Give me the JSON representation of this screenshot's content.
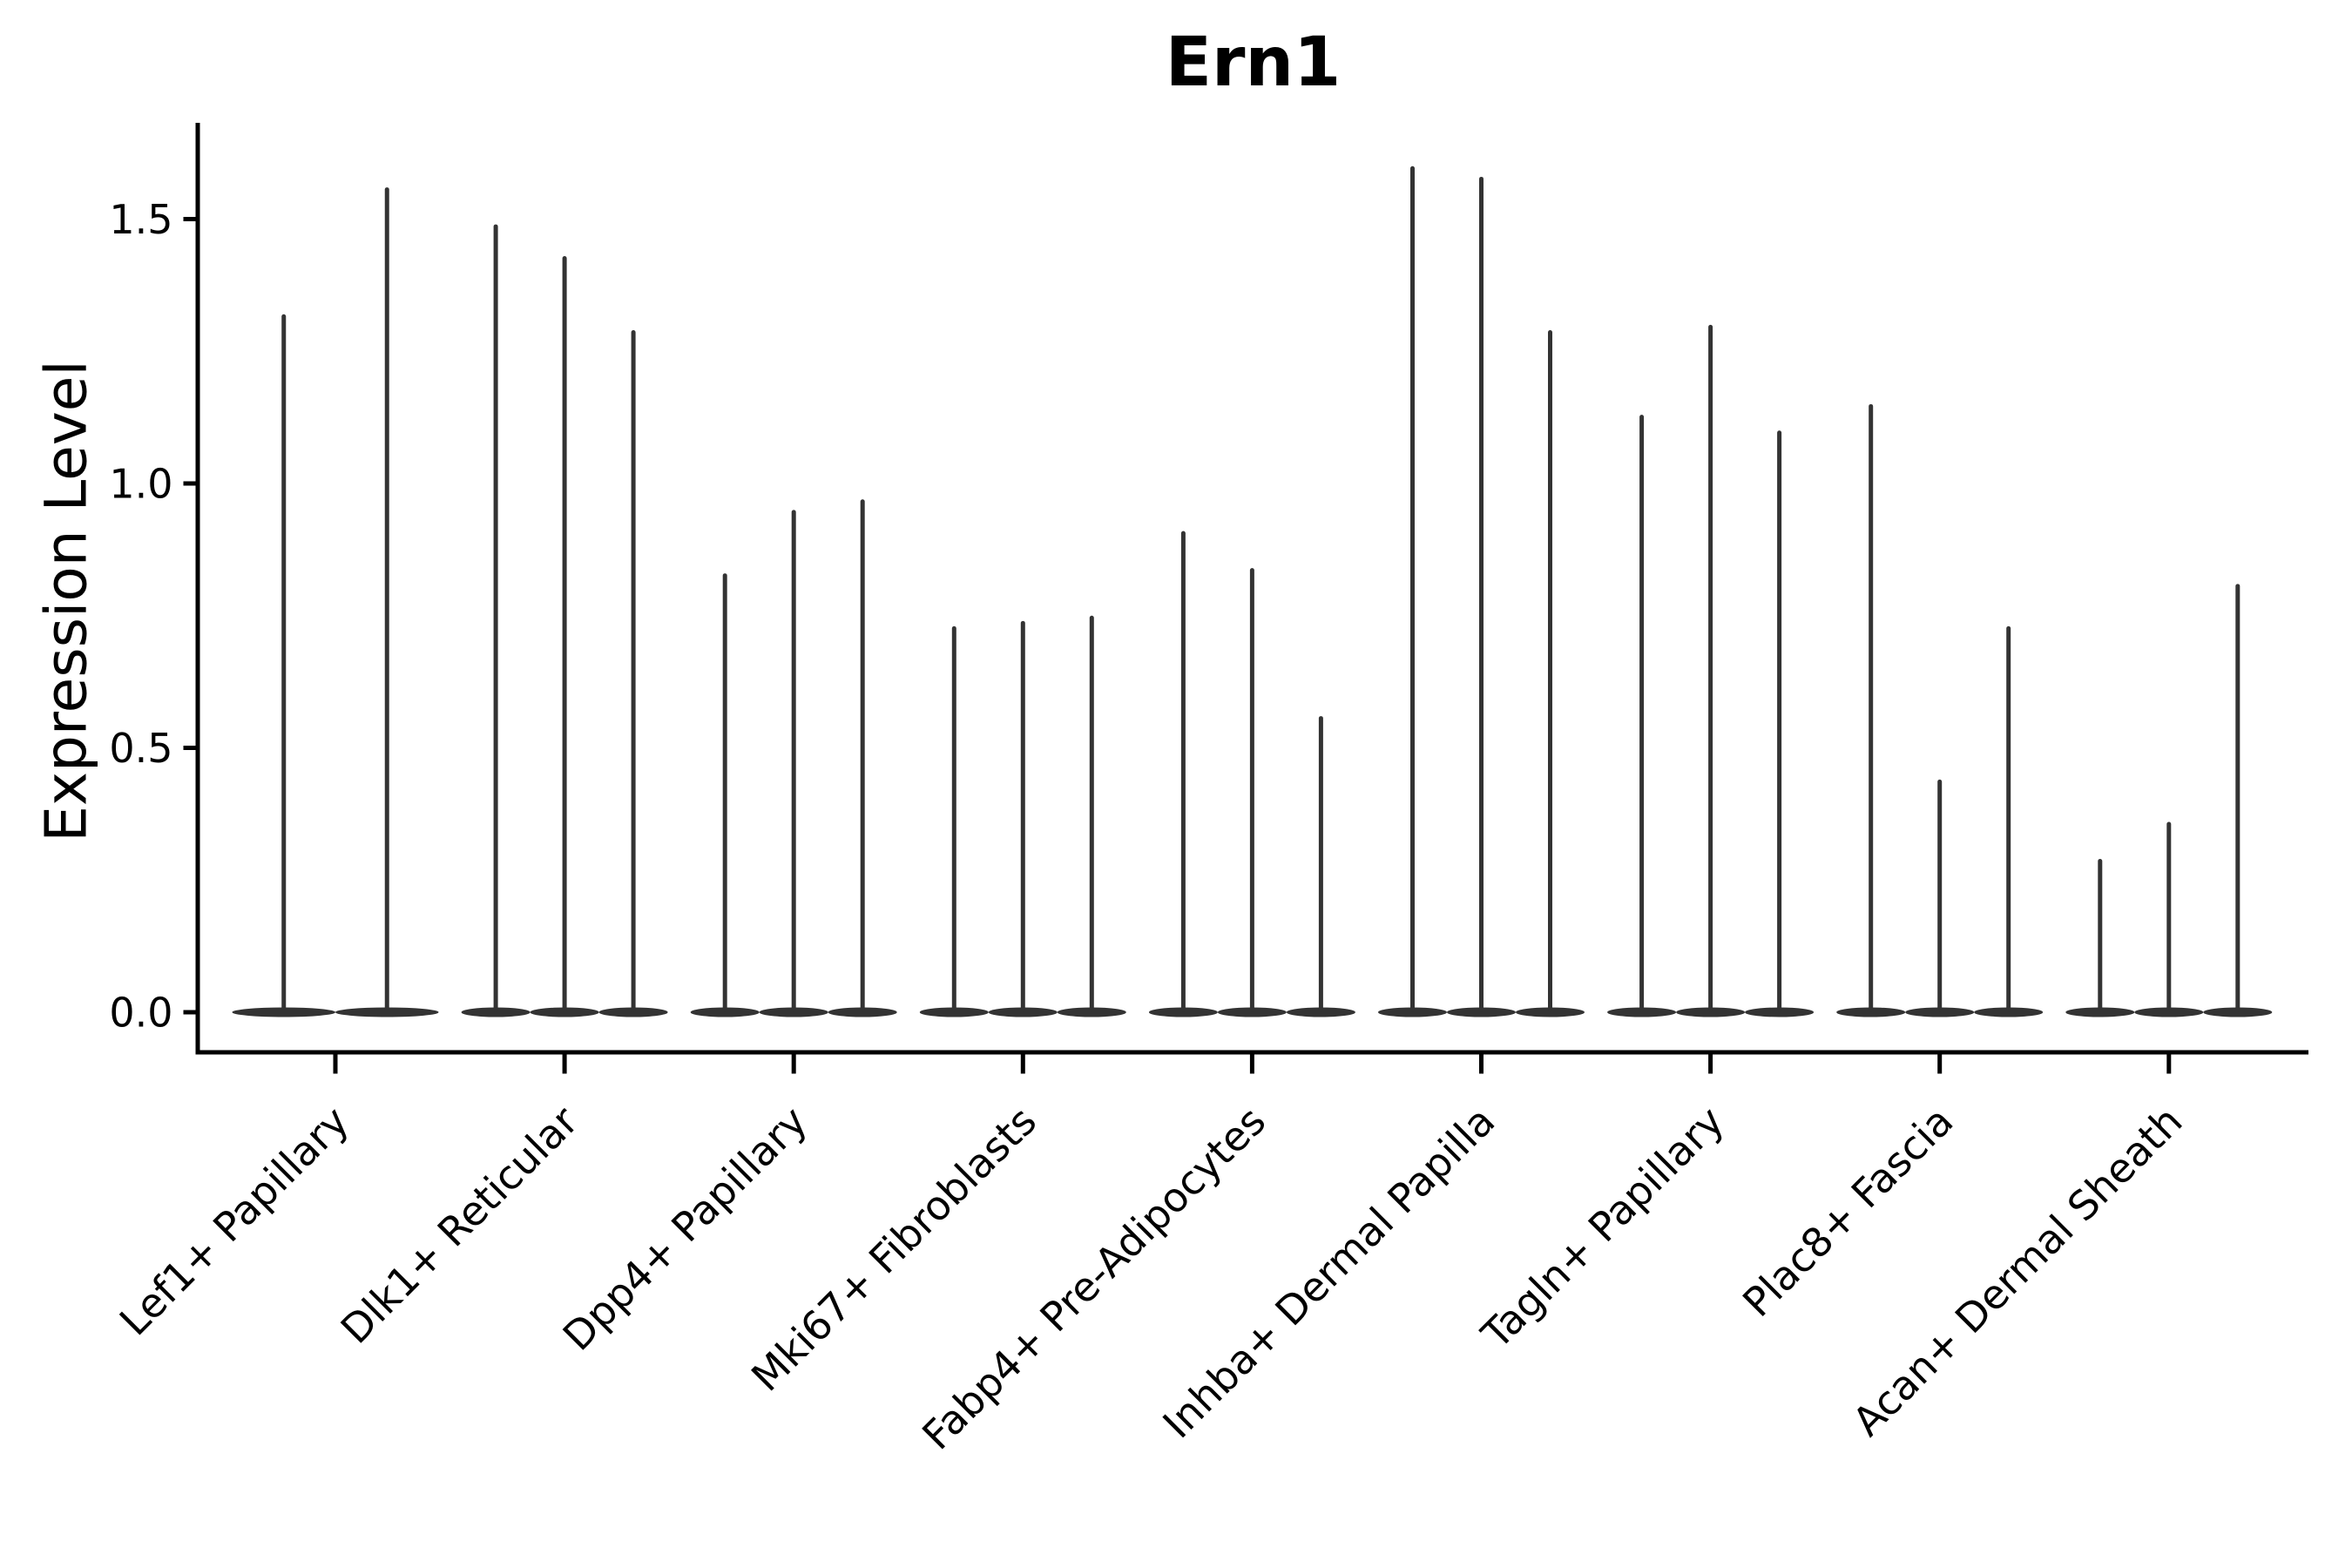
{
  "chart_data": {
    "type": "violin",
    "title": "Ern1",
    "ylabel": "Expression Level",
    "xlabel": "",
    "ylim": [
      -0.08,
      1.68
    ],
    "yticks": [
      0.0,
      0.5,
      1.0,
      1.5
    ],
    "ytick_labels": [
      "0.0",
      "0.5",
      "1.0",
      "1.5"
    ],
    "grid": false,
    "legend": false,
    "categories": [
      "Lef1+ Papillary",
      "Dlk1+ Reticular",
      "Dpp4+ Papillary",
      "Mki67+ Fibroblasts",
      "Fabp4+ Pre-Adipocytes",
      "Inhba+ Dermal Papilla",
      "Tagln+ Papillary",
      "Plac8+ Fascia",
      "Acan+ Dermal Sheath"
    ],
    "groups": [
      {
        "category": "Lef1+ Papillary",
        "violin_min": 0.0,
        "violin_maxima": [
          1.32,
          1.56
        ]
      },
      {
        "category": "Dlk1+ Reticular",
        "violin_min": 0.0,
        "violin_maxima": [
          1.49,
          1.43,
          1.29
        ]
      },
      {
        "category": "Dpp4+ Papillary",
        "violin_min": 0.0,
        "violin_maxima": [
          0.83,
          0.95,
          0.97
        ]
      },
      {
        "category": "Mki67+ Fibroblasts",
        "violin_min": 0.0,
        "violin_maxima": [
          0.73,
          0.74,
          0.75
        ]
      },
      {
        "category": "Fabp4+ Pre-Adipocytes",
        "violin_min": 0.0,
        "violin_maxima": [
          0.91,
          0.84,
          0.56
        ]
      },
      {
        "category": "Inhba+ Dermal Papilla",
        "violin_min": 0.0,
        "violin_maxima": [
          1.6,
          1.58,
          1.29
        ]
      },
      {
        "category": "Tagln+ Papillary",
        "violin_min": 0.0,
        "violin_maxima": [
          1.13,
          1.3,
          1.1
        ]
      },
      {
        "category": "Plac8+ Fascia",
        "violin_min": 0.0,
        "violin_maxima": [
          1.15,
          0.44,
          0.73
        ]
      },
      {
        "category": "Acan+ Dermal Sheath",
        "violin_min": 0.0,
        "violin_maxima": [
          0.29,
          0.36,
          0.81
        ]
      }
    ],
    "colors": {
      "violin": "#333333",
      "axis": "#000000",
      "text": "#000000",
      "background": "#ffffff"
    }
  }
}
